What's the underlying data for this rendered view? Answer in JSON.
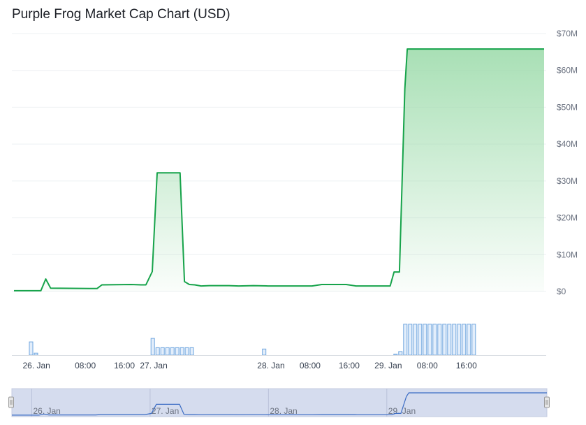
{
  "header": {
    "title": "Purple Frog Market Cap Chart (USD)"
  },
  "colors": {
    "line": "#16a34a",
    "area_top": "#9fdcad",
    "grid": "#eef0f3",
    "volume_fill": "#e3eefb",
    "volume_stroke": "#6fa6df",
    "navigator_bg": "#d5dcee",
    "navigator_line": "#3b6cc4",
    "handle": "#e6e6e6"
  },
  "icons": {
    "navigator_left": "drag-handle-icon",
    "navigator_right": "drag-handle-icon"
  },
  "chart_data": {
    "type": "area",
    "title": "Purple Frog Market Cap Chart (USD)",
    "xlabel": "",
    "ylabel": "",
    "x_range_hours": [
      0,
      108.5
    ],
    "ylim": [
      0,
      70000000
    ],
    "y_ticks": [
      {
        "value": 0,
        "label": "$0"
      },
      {
        "value": 10000000,
        "label": "$10M"
      },
      {
        "value": 20000000,
        "label": "$20M"
      },
      {
        "value": 30000000,
        "label": "$30M"
      },
      {
        "value": 40000000,
        "label": "$40M"
      },
      {
        "value": 50000000,
        "label": "$50M"
      },
      {
        "value": 60000000,
        "label": "$60M"
      },
      {
        "value": 70000000,
        "label": "$70M"
      }
    ],
    "x_ticks": [
      {
        "hour": 4.6,
        "label": "26. Jan"
      },
      {
        "hour": 14.6,
        "label": "08:00"
      },
      {
        "hour": 22.6,
        "label": "16:00"
      },
      {
        "hour": 28.6,
        "label": "27. Jan"
      },
      {
        "hour": 52.6,
        "label": "28. Jan"
      },
      {
        "hour": 60.6,
        "label": "08:00"
      },
      {
        "hour": 68.6,
        "label": "16:00"
      },
      {
        "hour": 76.6,
        "label": "29. Jan"
      },
      {
        "hour": 84.6,
        "label": "08:00"
      },
      {
        "hour": 92.6,
        "label": "16:00"
      }
    ],
    "navigator_labels": [
      {
        "hour": 4.6,
        "label": "26. Jan"
      },
      {
        "hour": 28.6,
        "label": "27. Jan"
      },
      {
        "hour": 52.6,
        "label": "28. Jan"
      },
      {
        "hour": 76.6,
        "label": "29. Jan"
      }
    ],
    "grid": true,
    "legend": "none",
    "series": [
      {
        "x": [
          0,
          5.5,
          6.5,
          7.5,
          17,
          18,
          24,
          26,
          27,
          28.3,
          29.3,
          34,
          34.9,
          35.9,
          37,
          38.3,
          40,
          41,
          44,
          46,
          49,
          52,
          54,
          60,
          61,
          63,
          64,
          66,
          67,
          68,
          70,
          76,
          77,
          77.8,
          78.9,
          80,
          80.5,
          81,
          83,
          85,
          87,
          89,
          91,
          93,
          95,
          97,
          99,
          101,
          103,
          105,
          107,
          108.5
        ],
        "y": [
          200000,
          200000,
          3400000,
          900000,
          800000,
          1800000,
          1900000,
          1800000,
          1800000,
          5400000,
          32200000,
          32200000,
          2700000,
          1900000,
          1800000,
          1500000,
          1600000,
          1600000,
          1600000,
          1500000,
          1600000,
          1500000,
          1500000,
          1500000,
          1500000,
          1900000,
          1900000,
          1900000,
          1900000,
          1900000,
          1500000,
          1500000,
          1500000,
          5300000,
          5300000,
          55000000,
          65800000,
          65800000,
          65800000,
          65800000,
          65800000,
          65800000,
          65800000,
          65800000,
          65800000,
          65800000,
          65800000,
          65800000,
          65800000,
          65800000,
          65800000,
          65800000
        ]
      }
    ],
    "volume": {
      "x": [
        3.5,
        4.5,
        28.4,
        29.4,
        30.4,
        31.4,
        32.4,
        33.4,
        34.4,
        35.4,
        36.4,
        51.2,
        78.1,
        79.1,
        80.1,
        81.1,
        82.1,
        83.1,
        84.1,
        85.1,
        86.1,
        87.1,
        88.1,
        89.1,
        90.1,
        91.1,
        92.1,
        93.1,
        94.1
      ],
      "values": [
        0.41,
        0.06,
        0.52,
        0.23,
        0.23,
        0.23,
        0.23,
        0.23,
        0.23,
        0.23,
        0.23,
        0.19,
        0.03,
        0.11,
        0.96,
        0.96,
        0.96,
        0.96,
        0.96,
        0.96,
        0.96,
        0.96,
        0.96,
        0.96,
        0.96,
        0.96,
        0.96,
        0.96,
        0.96
      ]
    }
  }
}
